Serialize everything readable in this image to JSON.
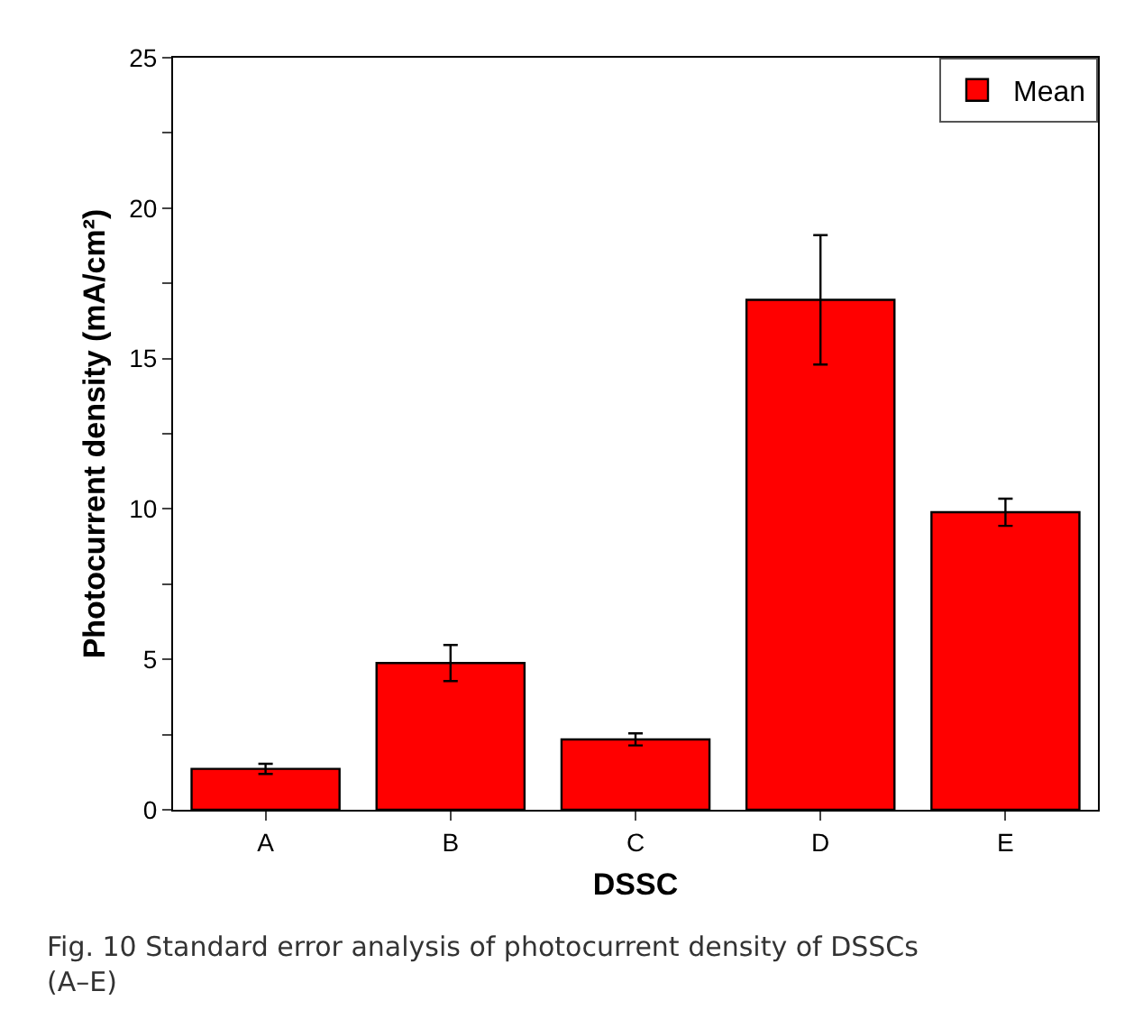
{
  "chart_data": {
    "type": "bar",
    "xlabel": "DSSC",
    "ylabel": "Photocurrent density (mA/cm²)",
    "categories": [
      "A",
      "B",
      "C",
      "D",
      "E"
    ],
    "series": [
      {
        "name": "Mean",
        "color": "#ff0000",
        "values": [
          1.36,
          4.88,
          2.34,
          16.95,
          9.89
        ],
        "errors": [
          0.17,
          0.6,
          0.2,
          2.15,
          0.45
        ]
      }
    ],
    "ylim": [
      0,
      25
    ],
    "yticks": [
      0,
      {
        "value": 2.5,
        "label": null
      },
      5,
      {
        "value": 7.5,
        "label": null
      },
      10,
      {
        "value": 12.5,
        "label": null
      },
      15,
      {
        "value": 17.5,
        "label": null
      },
      20,
      {
        "value": 22.5,
        "label": null
      },
      25
    ],
    "legend": "top right",
    "annotations": [
      "Fig. 10 Standard error analysis of photocurrent density of DSSCs (A–E)"
    ]
  }
}
